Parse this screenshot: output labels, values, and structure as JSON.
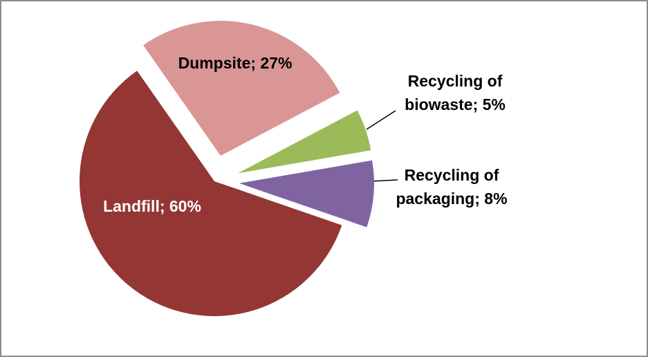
{
  "chart_data": {
    "type": "pie",
    "values": [
      60,
      27,
      5,
      8
    ],
    "value_labels": [
      "Landfill; 60%",
      "Dumpsite; 27%",
      "Recycling of biowaste; 5%",
      "Recycling of packaging; 8%"
    ],
    "colors": [
      "#943634",
      "#d99694",
      "#9bbb59",
      "#8064a2"
    ]
  }
}
